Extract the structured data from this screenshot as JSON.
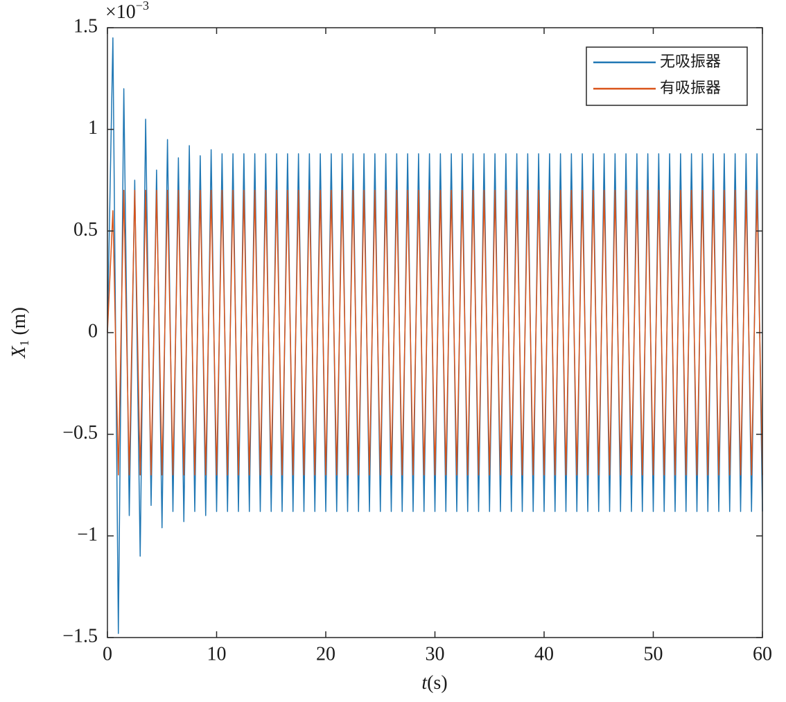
{
  "chart_data": {
    "type": "line",
    "multiplier": "×10",
    "multiplier_exponent": "−3",
    "ylabel": {
      "symbol": "X",
      "subscript": "1",
      "unit": " (m)"
    },
    "xlabel": {
      "symbol": "t",
      "unit": "(s)"
    },
    "xlim": [
      0,
      60
    ],
    "xticks": [
      0,
      10,
      20,
      30,
      40,
      50,
      60
    ],
    "ylim": [
      -1.5,
      1.5
    ],
    "yticks": [
      {
        "value": -1.5,
        "label": "−1.5"
      },
      {
        "value": -1,
        "label": "−1"
      },
      {
        "value": -0.5,
        "label": "−0.5"
      },
      0,
      0.5,
      1,
      1.5
    ],
    "legend": "upper right",
    "x": [
      0,
      0.5,
      1,
      1.5,
      2,
      2.5,
      3,
      3.5,
      4,
      4.5,
      5,
      5.5,
      6,
      6.5,
      7,
      7.5,
      8,
      8.5,
      9,
      9.5,
      10,
      10.5,
      11,
      11.5,
      12,
      12.5,
      13,
      13.5,
      14,
      14.5,
      15,
      15.5,
      16,
      16.5,
      17,
      17.5,
      18,
      18.5,
      19,
      19.5,
      20,
      20.5,
      21,
      21.5,
      22,
      22.5,
      23,
      23.5,
      24,
      24.5,
      25,
      25.5,
      26,
      26.5,
      27,
      27.5,
      28,
      28.5,
      29,
      29.5,
      30,
      30.5,
      31,
      31.5,
      32,
      32.5,
      33,
      33.5,
      34,
      34.5,
      35,
      35.5,
      36,
      36.5,
      37,
      37.5,
      38,
      38.5,
      39,
      39.5,
      40,
      40.5,
      41,
      41.5,
      42,
      42.5,
      43,
      43.5,
      44,
      44.5,
      45,
      45.5,
      46,
      46.5,
      47,
      47.5,
      48,
      48.5,
      49,
      49.5,
      50,
      50.5,
      51,
      51.5,
      52,
      52.5,
      53,
      53.5,
      54,
      54.5,
      55,
      55.5,
      56,
      56.5,
      57,
      57.5,
      58,
      58.5,
      59,
      59.5,
      60
    ],
    "series": [
      {
        "name": "无吸振器",
        "color": "#1f77b4",
        "values": [
          0,
          1.45,
          -1.48,
          1.2,
          -0.9,
          0.75,
          -1.1,
          1.05,
          -0.85,
          0.8,
          -0.96,
          0.95,
          -0.88,
          0.86,
          -0.93,
          0.92,
          -0.88,
          0.87,
          -0.9,
          0.9,
          -0.88,
          0.88,
          -0.88,
          0.88,
          -0.88,
          0.88,
          -0.88,
          0.88,
          -0.88,
          0.88,
          -0.88,
          0.88,
          -0.88,
          0.88,
          -0.88,
          0.88,
          -0.88,
          0.88,
          -0.88,
          0.88,
          -0.88,
          0.88,
          -0.88,
          0.88,
          -0.88,
          0.88,
          -0.88,
          0.88,
          -0.88,
          0.88,
          -0.88,
          0.88,
          -0.88,
          0.88,
          -0.88,
          0.88,
          -0.88,
          0.88,
          -0.88,
          0.88,
          -0.88,
          0.88,
          -0.88,
          0.88,
          -0.88,
          0.88,
          -0.88,
          0.88,
          -0.88,
          0.88,
          -0.88,
          0.88,
          -0.88,
          0.88,
          -0.88,
          0.88,
          -0.88,
          0.88,
          -0.88,
          0.88,
          -0.88,
          0.88,
          -0.88,
          0.88,
          -0.88,
          0.88,
          -0.88,
          0.88,
          -0.88,
          0.88,
          -0.88,
          0.88,
          -0.88,
          0.88,
          -0.88,
          0.88,
          -0.88,
          0.88,
          -0.88,
          0.88,
          -0.88,
          0.88,
          -0.88,
          0.88,
          -0.88,
          0.88,
          -0.88,
          0.88,
          -0.88,
          0.88,
          -0.88,
          0.88,
          -0.88,
          0.88,
          -0.88,
          0.88,
          -0.88,
          0.88,
          -0.88,
          0.88,
          -0.88
        ]
      },
      {
        "name": "有吸振器",
        "color": "#d95319",
        "values": [
          0,
          0.6,
          -0.7,
          0.7,
          -0.7,
          0.7,
          -0.7,
          0.7,
          -0.7,
          0.7,
          -0.7,
          0.7,
          -0.7,
          0.7,
          -0.7,
          0.7,
          -0.7,
          0.7,
          -0.7,
          0.7,
          -0.7,
          0.7,
          -0.7,
          0.7,
          -0.7,
          0.7,
          -0.7,
          0.7,
          -0.7,
          0.7,
          -0.7,
          0.7,
          -0.7,
          0.7,
          -0.7,
          0.7,
          -0.7,
          0.7,
          -0.7,
          0.7,
          -0.7,
          0.7,
          -0.7,
          0.7,
          -0.7,
          0.7,
          -0.7,
          0.7,
          -0.7,
          0.7,
          -0.7,
          0.7,
          -0.7,
          0.7,
          -0.7,
          0.7,
          -0.7,
          0.7,
          -0.7,
          0.7,
          -0.7,
          0.7,
          -0.7,
          0.7,
          -0.7,
          0.7,
          -0.7,
          0.7,
          -0.7,
          0.7,
          -0.7,
          0.7,
          -0.7,
          0.7,
          -0.7,
          0.7,
          -0.7,
          0.7,
          -0.7,
          0.7,
          -0.7,
          0.7,
          -0.7,
          0.7,
          -0.7,
          0.7,
          -0.7,
          0.7,
          -0.7,
          0.7,
          -0.7,
          0.7,
          -0.7,
          0.7,
          -0.7,
          0.7,
          -0.7,
          0.7,
          -0.7,
          0.7,
          -0.7,
          0.7,
          -0.7,
          0.7,
          -0.7,
          0.7,
          -0.7,
          0.7,
          -0.7,
          0.7,
          -0.7,
          0.7,
          -0.7,
          0.7,
          -0.7,
          0.7,
          -0.7,
          0.7,
          -0.7,
          0.7,
          -0.7
        ]
      }
    ]
  }
}
